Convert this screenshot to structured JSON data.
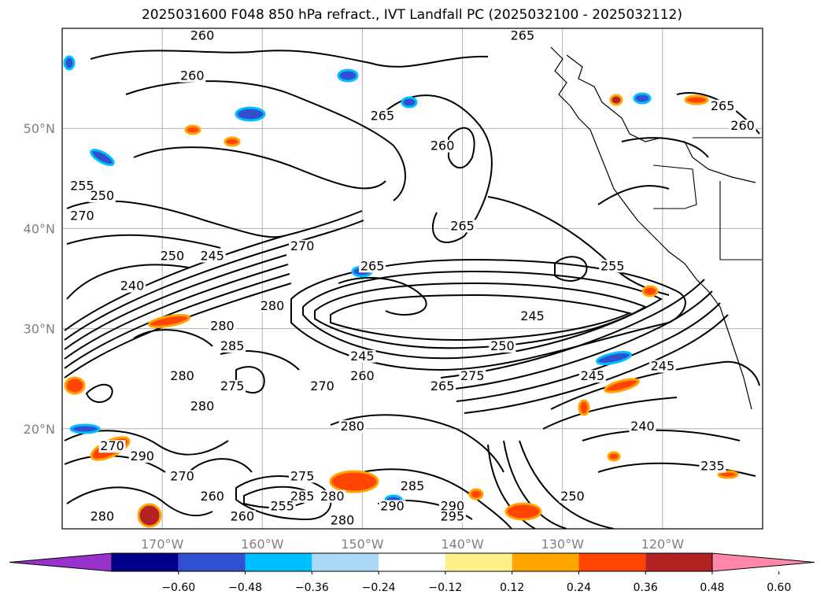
{
  "title": "2025031600 F048 850 hPa refract., IVT Landfall PC (2025032100 - 2025032112)",
  "map": {
    "lon_range": [
      -180,
      -110
    ],
    "lat_range": [
      10,
      60
    ],
    "lon_ticks": [
      {
        "lon": -170,
        "label": "170°W"
      },
      {
        "lon": -160,
        "label": "160°W"
      },
      {
        "lon": -150,
        "label": "150°W"
      },
      {
        "lon": -140,
        "label": "140°W"
      },
      {
        "lon": -130,
        "label": "130°W"
      },
      {
        "lon": -120,
        "label": "120°W"
      }
    ],
    "lat_ticks": [
      {
        "lat": 50,
        "label": "50°N"
      },
      {
        "lat": 40,
        "label": "40°N"
      },
      {
        "lat": 30,
        "label": "30°N"
      },
      {
        "lat": 20,
        "label": "20°N"
      }
    ],
    "grid": true,
    "contour_labels": [
      {
        "lon": -166,
        "lat": 59,
        "text": "260"
      },
      {
        "lon": -134,
        "lat": 59,
        "text": "265"
      },
      {
        "lon": -167,
        "lat": 55,
        "text": "260"
      },
      {
        "lon": -148,
        "lat": 51,
        "text": "265"
      },
      {
        "lon": -142,
        "lat": 48,
        "text": "260"
      },
      {
        "lon": -114,
        "lat": 52,
        "text": "265"
      },
      {
        "lon": -112,
        "lat": 50,
        "text": "260"
      },
      {
        "lon": -178,
        "lat": 44,
        "text": "255"
      },
      {
        "lon": -176,
        "lat": 43,
        "text": "250"
      },
      {
        "lon": -178,
        "lat": 41,
        "text": "270"
      },
      {
        "lon": -165,
        "lat": 37,
        "text": "245"
      },
      {
        "lon": -169,
        "lat": 37,
        "text": "250"
      },
      {
        "lon": -173,
        "lat": 34,
        "text": "240"
      },
      {
        "lon": -156,
        "lat": 38,
        "text": "270"
      },
      {
        "lon": -140,
        "lat": 40,
        "text": "265"
      },
      {
        "lon": -149,
        "lat": 36,
        "text": "265"
      },
      {
        "lon": -159,
        "lat": 32,
        "text": "280"
      },
      {
        "lon": -164,
        "lat": 30,
        "text": "280"
      },
      {
        "lon": -163,
        "lat": 28,
        "text": "285"
      },
      {
        "lon": -125,
        "lat": 36,
        "text": "255"
      },
      {
        "lon": -133,
        "lat": 31,
        "text": "245"
      },
      {
        "lon": -150,
        "lat": 27,
        "text": "245"
      },
      {
        "lon": -136,
        "lat": 28,
        "text": "250"
      },
      {
        "lon": -127,
        "lat": 25,
        "text": "245"
      },
      {
        "lon": -120,
        "lat": 26,
        "text": "245"
      },
      {
        "lon": -168,
        "lat": 25,
        "text": "280"
      },
      {
        "lon": -163,
        "lat": 24,
        "text": "275"
      },
      {
        "lon": -166,
        "lat": 22,
        "text": "280"
      },
      {
        "lon": -154,
        "lat": 24,
        "text": "270"
      },
      {
        "lon": -150,
        "lat": 25,
        "text": "260"
      },
      {
        "lon": -142,
        "lat": 24,
        "text": "265"
      },
      {
        "lon": -139,
        "lat": 25,
        "text": "275"
      },
      {
        "lon": -151,
        "lat": 20,
        "text": "280"
      },
      {
        "lon": -122,
        "lat": 20,
        "text": "240"
      },
      {
        "lon": -175,
        "lat": 18,
        "text": "270"
      },
      {
        "lon": -172,
        "lat": 17,
        "text": "290"
      },
      {
        "lon": -168,
        "lat": 15,
        "text": "270"
      },
      {
        "lon": -156,
        "lat": 15,
        "text": "275"
      },
      {
        "lon": -145,
        "lat": 14,
        "text": "285"
      },
      {
        "lon": -165,
        "lat": 13,
        "text": "260"
      },
      {
        "lon": -153,
        "lat": 13,
        "text": "280"
      },
      {
        "lon": -156,
        "lat": 13,
        "text": "285"
      },
      {
        "lon": -147,
        "lat": 12,
        "text": "290"
      },
      {
        "lon": -141,
        "lat": 12,
        "text": "290"
      },
      {
        "lon": -141,
        "lat": 11,
        "text": "295"
      },
      {
        "lon": -162,
        "lat": 11,
        "text": "260"
      },
      {
        "lon": -158,
        "lat": 12,
        "text": "255"
      },
      {
        "lon": -176,
        "lat": 11,
        "text": "280"
      },
      {
        "lon": -152,
        "lat": 10.6,
        "text": "280"
      },
      {
        "lon": -129,
        "lat": 13,
        "text": "250"
      },
      {
        "lon": -115,
        "lat": 16,
        "text": "235"
      }
    ]
  },
  "colorbar": {
    "colors": [
      "#9932cc",
      "#00008b",
      "#3050d0",
      "#00bfff",
      "#add8f5",
      "#ffffff",
      "#fff08a",
      "#ffa500",
      "#ff4500",
      "#b22222",
      "#ff88aa"
    ],
    "ticks": [
      "−0.60",
      "−0.48",
      "−0.36",
      "−0.24",
      "−0.12",
      "0.12",
      "0.24",
      "0.36",
      "0.48",
      "0.60"
    ]
  }
}
